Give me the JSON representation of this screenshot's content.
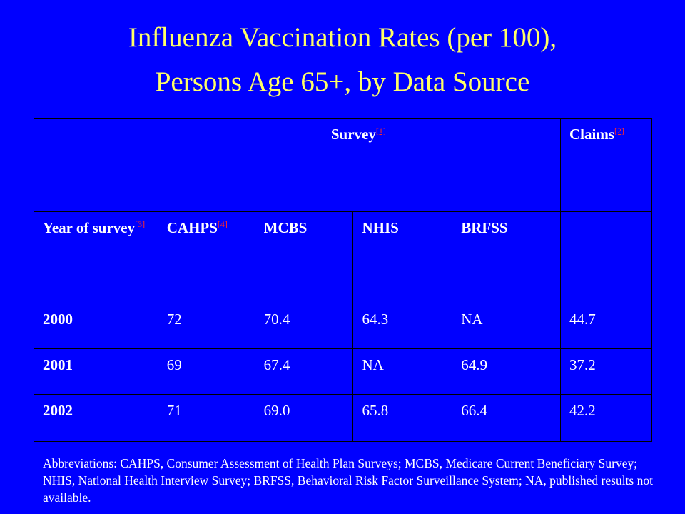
{
  "title": {
    "line1": "Influenza Vaccination Rates (per 100),",
    "line2": "Persons Age 65+, by Data Source"
  },
  "table": {
    "header_row1": {
      "survey_label": "Survey",
      "survey_ref": "[1]",
      "claims_label": "Claims",
      "claims_ref": "[2]"
    },
    "header_row2": {
      "year_label": "Year of survey",
      "year_ref": "[3]",
      "cahps_label": "CAHPS",
      "cahps_ref": "[4]",
      "mcbs_label": "MCBS",
      "nhis_label": "NHIS",
      "brfss_label": "BRFSS"
    },
    "rows": [
      {
        "year": "2000",
        "cahps": "72",
        "mcbs": "70.4",
        "nhis": "64.3",
        "brfss": "NA",
        "claims": "44.7"
      },
      {
        "year": "2001",
        "cahps": "69",
        "mcbs": "67.4",
        "nhis": "NA",
        "brfss": "64.9",
        "claims": "37.2"
      },
      {
        "year": "2002",
        "cahps": "71",
        "mcbs": "69.0",
        "nhis": "65.8",
        "brfss": "66.4",
        "claims": "42.2"
      }
    ]
  },
  "footnote": "Abbreviations: CAHPS, Consumer Assessment of Health Plan Surveys; MCBS, Medicare Current Beneficiary Survey; NHIS, National Health Interview Survey; BRFSS, Behavioral Risk Factor Surveillance System; NA, published results not available."
}
